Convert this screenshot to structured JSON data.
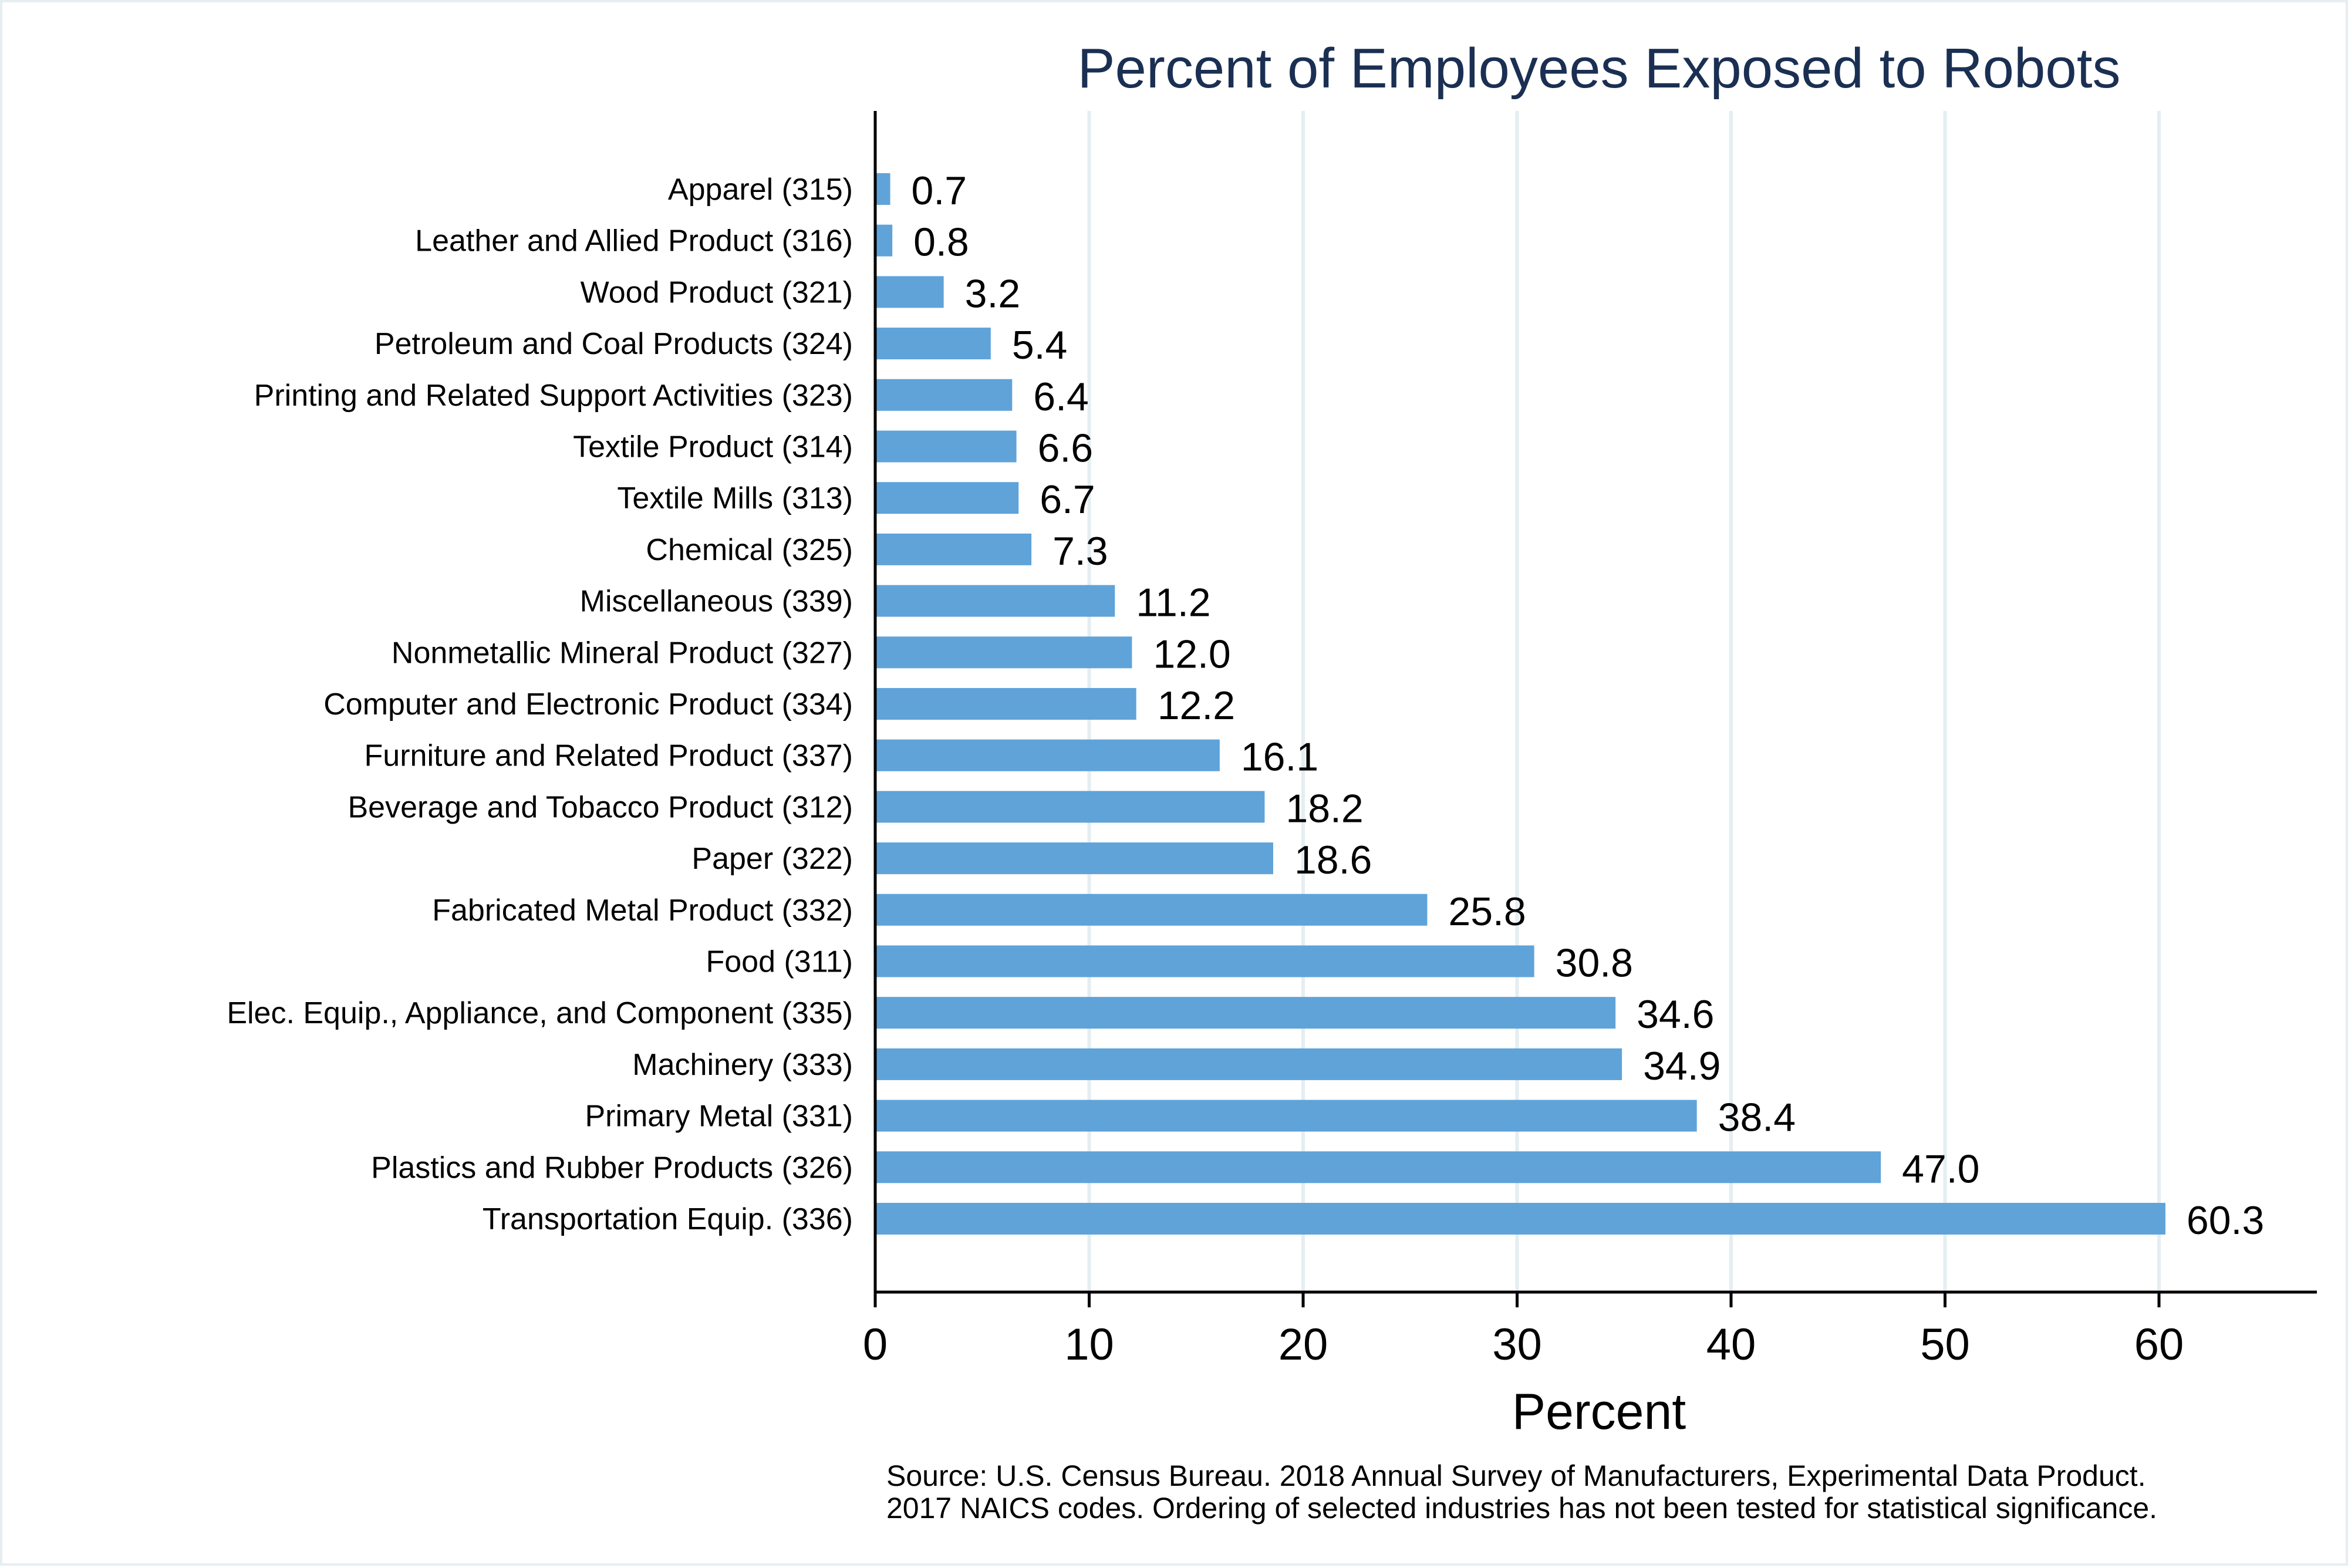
{
  "chart_data": {
    "type": "bar",
    "orientation": "horizontal",
    "title": "Percent of Employees Exposed to Robots",
    "xlabel": "Percent",
    "ylabel": "",
    "xlim": [
      0,
      67.5
    ],
    "xticks": [
      0,
      10,
      20,
      30,
      40,
      50,
      60
    ],
    "grid": true,
    "legend": "none",
    "bar_color": "#5fa3d9",
    "grid_color": "#e4eef2",
    "title_color": "#1a2f52",
    "categories": [
      "Apparel (315)",
      "Leather and Allied Product (316)",
      "Wood Product (321)",
      "Petroleum and Coal Products (324)",
      "Printing and Related Support Activities (323)",
      "Textile Product (314)",
      "Textile Mills (313)",
      "Chemical (325)",
      "Miscellaneous (339)",
      "Nonmetallic Mineral Product (327)",
      "Computer and Electronic Product (334)",
      "Furniture and Related Product (337)",
      "Beverage and Tobacco Product (312)",
      "Paper (322)",
      "Fabricated Metal Product (332)",
      "Food (311)",
      "Elec. Equip., Appliance, and Component (335)",
      "Machinery (333)",
      "Primary Metal (331)",
      "Plastics and Rubber Products (326)",
      "Transportation Equip. (336)"
    ],
    "values": [
      0.7,
      0.8,
      3.2,
      5.4,
      6.4,
      6.6,
      6.7,
      7.3,
      11.2,
      12.0,
      12.2,
      16.1,
      18.2,
      18.6,
      25.8,
      30.8,
      34.6,
      34.9,
      38.4,
      47.0,
      60.3
    ],
    "value_labels": [
      "0.7",
      "0.8",
      "3.2",
      "5.4",
      "6.4",
      "6.6",
      "6.7",
      "7.3",
      "11.2",
      "12.0",
      "12.2",
      "16.1",
      "18.2",
      "18.6",
      "25.8",
      "30.8",
      "34.6",
      "34.9",
      "38.4",
      "47.0",
      "60.3"
    ],
    "notes": [
      "Source: U.S. Census Bureau. 2018 Annual Survey of Manufacturers, Experimental Data Product.",
      "2017 NAICS codes. Ordering of selected industries has not been tested for statistical significance."
    ]
  }
}
